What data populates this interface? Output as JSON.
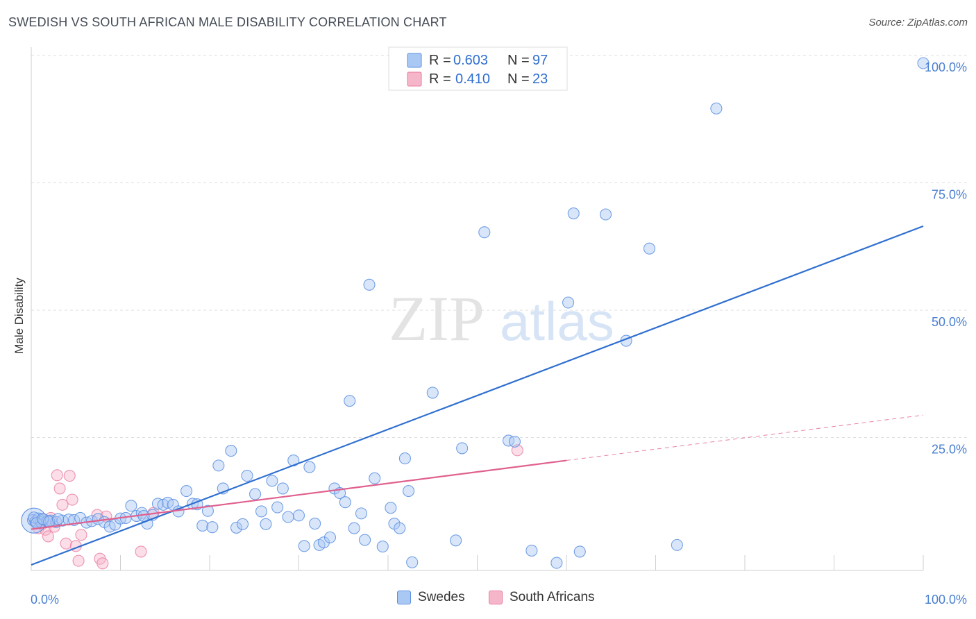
{
  "title": "SWEDISH VS SOUTH AFRICAN MALE DISABILITY CORRELATION CHART",
  "source": "Source: ZipAtlas.com",
  "watermark": {
    "zip": "ZIP",
    "atlas": "atlas"
  },
  "colors": {
    "swedes": "#5b8fe0",
    "swedes_fill": "#aac8f4",
    "swedes_line": "#2f6fd0",
    "south_africans": "#e87aa0",
    "south_africans_fill": "#f6b6ca",
    "south_africans_line": "#e0608e",
    "tick": "#4a7fd0"
  },
  "legend_top": [
    {
      "r_label": "R =",
      "r_value": "0.603",
      "n_label": "N =",
      "n_value": "97"
    },
    {
      "r_label": "R =",
      "r_value": "0.410",
      "n_label": "N =",
      "n_value": "23"
    }
  ],
  "chart_data": {
    "type": "scatter",
    "title": "SWEDISH VS SOUTH AFRICAN MALE DISABILITY CORRELATION CHART",
    "xlabel": "",
    "ylabel": "Male Disability",
    "xlim": [
      0,
      100
    ],
    "ylim": [
      0,
      100
    ],
    "x_tick_labels": [
      "0.0%",
      "100.0%"
    ],
    "y_tick_labels": [
      "25.0%",
      "50.0%",
      "75.0%",
      "100.0%"
    ],
    "y_ticks": [
      25,
      50,
      75,
      100
    ],
    "grid": true,
    "legend_placement": "top-center",
    "series": [
      {
        "name": "Swedes",
        "r": 0.603,
        "n": 97,
        "trend": {
          "x": [
            0,
            100
          ],
          "y": [
            0,
            66.5
          ]
        },
        "points": [
          [
            0.2,
            8.8
          ],
          [
            0.5,
            8.5
          ],
          [
            0.8,
            9.1
          ],
          [
            1.1,
            8.4
          ],
          [
            1.4,
            8.9
          ],
          [
            1.8,
            8.6
          ],
          [
            2.2,
            8.7
          ],
          [
            2.8,
            8.4
          ],
          [
            3.5,
            8.7
          ],
          [
            4.2,
            8.9
          ],
          [
            4.8,
            8.8
          ],
          [
            5.5,
            9.2
          ],
          [
            6.2,
            8.3
          ],
          [
            6.8,
            8.6
          ],
          [
            7.5,
            9.0
          ],
          [
            8.2,
            8.4
          ],
          [
            8.8,
            7.5
          ],
          [
            9.4,
            7.9
          ],
          [
            10.0,
            9.1
          ],
          [
            10.6,
            9.2
          ],
          [
            11.2,
            11.6
          ],
          [
            11.8,
            9.6
          ],
          [
            12.4,
            10.2
          ],
          [
            13.0,
            8.1
          ],
          [
            13.6,
            9.8
          ],
          [
            14.2,
            12.0
          ],
          [
            14.8,
            11.8
          ],
          [
            15.3,
            12.2
          ],
          [
            15.9,
            11.8
          ],
          [
            16.5,
            10.5
          ],
          [
            17.4,
            14.5
          ],
          [
            18.1,
            12.0
          ],
          [
            18.6,
            11.9
          ],
          [
            19.2,
            7.7
          ],
          [
            19.8,
            10.6
          ],
          [
            20.3,
            7.4
          ],
          [
            21.0,
            19.5
          ],
          [
            21.5,
            15.0
          ],
          [
            22.4,
            22.4
          ],
          [
            23.0,
            7.3
          ],
          [
            23.7,
            8.0
          ],
          [
            24.2,
            17.5
          ],
          [
            25.1,
            13.9
          ],
          [
            25.8,
            10.5
          ],
          [
            26.3,
            8.0
          ],
          [
            27.0,
            16.5
          ],
          [
            27.6,
            11.3
          ],
          [
            28.2,
            15.0
          ],
          [
            28.8,
            9.4
          ],
          [
            29.4,
            20.5
          ],
          [
            30.0,
            9.7
          ],
          [
            30.6,
            3.7
          ],
          [
            31.2,
            19.2
          ],
          [
            31.8,
            8.1
          ],
          [
            32.3,
            3.9
          ],
          [
            32.8,
            4.4
          ],
          [
            33.5,
            5.4
          ],
          [
            34.0,
            15.0
          ],
          [
            34.6,
            14.1
          ],
          [
            35.2,
            12.3
          ],
          [
            35.7,
            32.2
          ],
          [
            36.2,
            7.2
          ],
          [
            37.0,
            10.1
          ],
          [
            37.4,
            4.9
          ],
          [
            37.9,
            55.0
          ],
          [
            38.5,
            17.0
          ],
          [
            39.4,
            3.6
          ],
          [
            40.3,
            11.2
          ],
          [
            40.7,
            8.1
          ],
          [
            41.3,
            7.2
          ],
          [
            41.9,
            20.9
          ],
          [
            42.3,
            14.5
          ],
          [
            42.7,
            0.5
          ],
          [
            45.0,
            33.8
          ],
          [
            47.6,
            4.8
          ],
          [
            48.3,
            22.9
          ],
          [
            50.8,
            65.3
          ],
          [
            51.4,
            98.5
          ],
          [
            53.5,
            24.4
          ],
          [
            54.2,
            24.2
          ],
          [
            56.1,
            2.8
          ],
          [
            58.9,
            0.4
          ],
          [
            60.2,
            51.5
          ],
          [
            60.8,
            69.0
          ],
          [
            61.5,
            2.6
          ],
          [
            64.4,
            68.8
          ],
          [
            66.7,
            44.0
          ],
          [
            69.3,
            62.1
          ],
          [
            72.4,
            3.9
          ],
          [
            76.8,
            89.6
          ],
          [
            100.0,
            98.5
          ],
          [
            0.3,
            9.3
          ],
          [
            0.6,
            8.2
          ],
          [
            1.3,
            9.0
          ],
          [
            2.0,
            8.5
          ],
          [
            3.0,
            9.0
          ],
          [
            12.6,
            9.6
          ]
        ]
      },
      {
        "name": "South Africans",
        "r": 0.41,
        "n": 23,
        "trend": {
          "x": [
            0,
            60
          ],
          "y": [
            7.0,
            20.5
          ],
          "dashed_to": {
            "x": 100,
            "y": 29.4
          }
        },
        "points": [
          [
            0.4,
            8.5
          ],
          [
            0.8,
            7.2
          ],
          [
            1.2,
            8.0
          ],
          [
            1.6,
            6.9
          ],
          [
            1.9,
            5.6
          ],
          [
            2.2,
            9.2
          ],
          [
            2.6,
            7.5
          ],
          [
            2.9,
            17.6
          ],
          [
            3.2,
            15.0
          ],
          [
            3.5,
            11.8
          ],
          [
            3.9,
            4.2
          ],
          [
            4.3,
            17.5
          ],
          [
            4.6,
            12.8
          ],
          [
            5.0,
            3.7
          ],
          [
            5.3,
            0.8
          ],
          [
            5.6,
            5.9
          ],
          [
            7.4,
            9.8
          ],
          [
            7.7,
            1.2
          ],
          [
            8.0,
            0.3
          ],
          [
            8.4,
            9.5
          ],
          [
            12.3,
            2.6
          ],
          [
            13.7,
            10.2
          ],
          [
            54.5,
            22.5
          ]
        ]
      }
    ]
  },
  "bottom_legend": [
    {
      "label": "Swedes"
    },
    {
      "label": "South Africans"
    }
  ]
}
